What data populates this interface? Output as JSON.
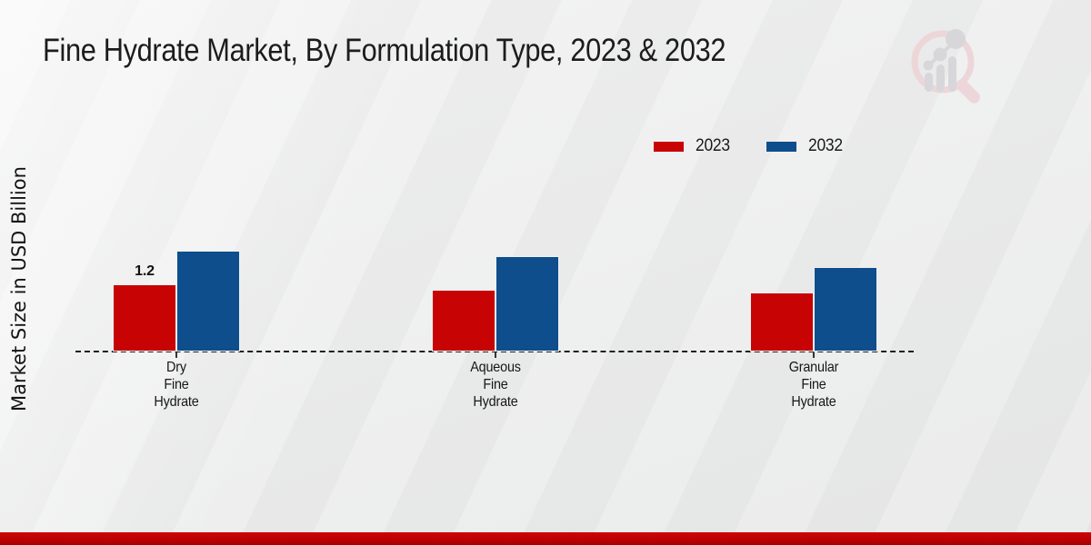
{
  "title": "Fine Hydrate Market, By Formulation Type, 2023 & 2032",
  "y_axis_label": "Market Size in USD Billion",
  "legend": {
    "items": [
      {
        "label": "2023",
        "color": "#c70303"
      },
      {
        "label": "2032",
        "color": "#0e4e8c"
      }
    ]
  },
  "chart_data": {
    "type": "bar",
    "title": "Fine Hydrate Market, By Formulation Type, 2023 & 2032",
    "categories": [
      "Dry Fine Hydrate",
      "Aqueous Fine Hydrate",
      "Granular Fine Hydrate"
    ],
    "categories_lines": [
      [
        "Dry",
        "Fine",
        "Hydrate"
      ],
      [
        "Aqueous",
        "Fine",
        "Hydrate"
      ],
      [
        "Granular",
        "Fine",
        "Hydrate"
      ]
    ],
    "series": [
      {
        "name": "2023",
        "color": "#c70303",
        "values": [
          1.2,
          1.1,
          1.05
        ]
      },
      {
        "name": "2032",
        "color": "#0e4e8c",
        "values": [
          1.8,
          1.7,
          1.5
        ]
      }
    ],
    "xlabel": "",
    "ylabel": "Market Size in USD Billion",
    "ylim": [
      0,
      2.2
    ],
    "grid": false,
    "legend_position": "top-right",
    "baseline_style": "dashed",
    "data_labels": [
      {
        "series_index": 0,
        "category_index": 0,
        "text": "1.2"
      }
    ]
  },
  "logo": {
    "name": "market-research-future-watermark"
  }
}
